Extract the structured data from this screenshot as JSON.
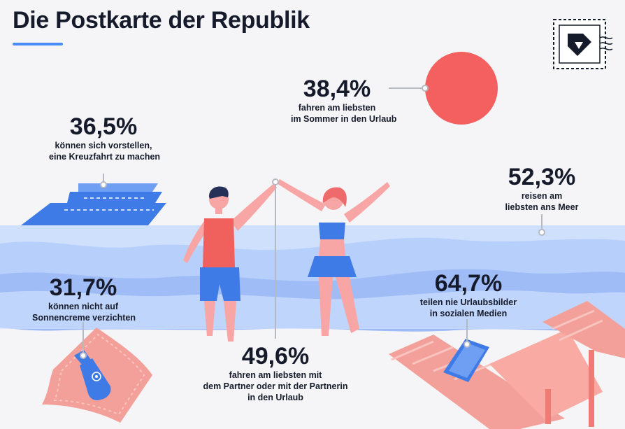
{
  "header": {
    "title": "Die Postkarte der Republik"
  },
  "icons": {
    "logo": "postage-stamp-logo-icon"
  },
  "colors": {
    "water_light": "#cfe0fd",
    "water_mid": "#b7cffb",
    "water_dark": "#9fbcf6",
    "ship": "#3f7be6",
    "ship_light": "#6f9ff2",
    "sun": "#f45f5f",
    "skin": "#f8a5a5",
    "shirt": "#f0605c",
    "shorts": "#3f7be6",
    "towel": "#f4a09a",
    "hair_dark": "#243057",
    "hair_red": "#ef6b6b",
    "leader": "#b6b9c2",
    "title_rule": "#4b8df8"
  },
  "stats": [
    {
      "value": "38,4%",
      "lines": [
        "fahren am liebsten",
        "im Sommer in den Urlaub"
      ]
    },
    {
      "value": "36,5%",
      "lines": [
        "können sich vorstellen,",
        "eine Kreuzfahrt zu machen"
      ]
    },
    {
      "value": "52,3%",
      "lines": [
        "reisen am",
        "liebsten ans Meer"
      ]
    },
    {
      "value": "31,7%",
      "lines": [
        "können nicht auf",
        "Sonnencreme verzichten"
      ]
    },
    {
      "value": "64,7%",
      "lines": [
        "teilen nie Urlaubsbilder",
        "in sozialen Medien"
      ]
    },
    {
      "value": "49,6%",
      "lines": [
        "fahren am liebsten mit",
        "dem Partner oder mit der Partnerin",
        "in den Urlaub"
      ]
    }
  ]
}
